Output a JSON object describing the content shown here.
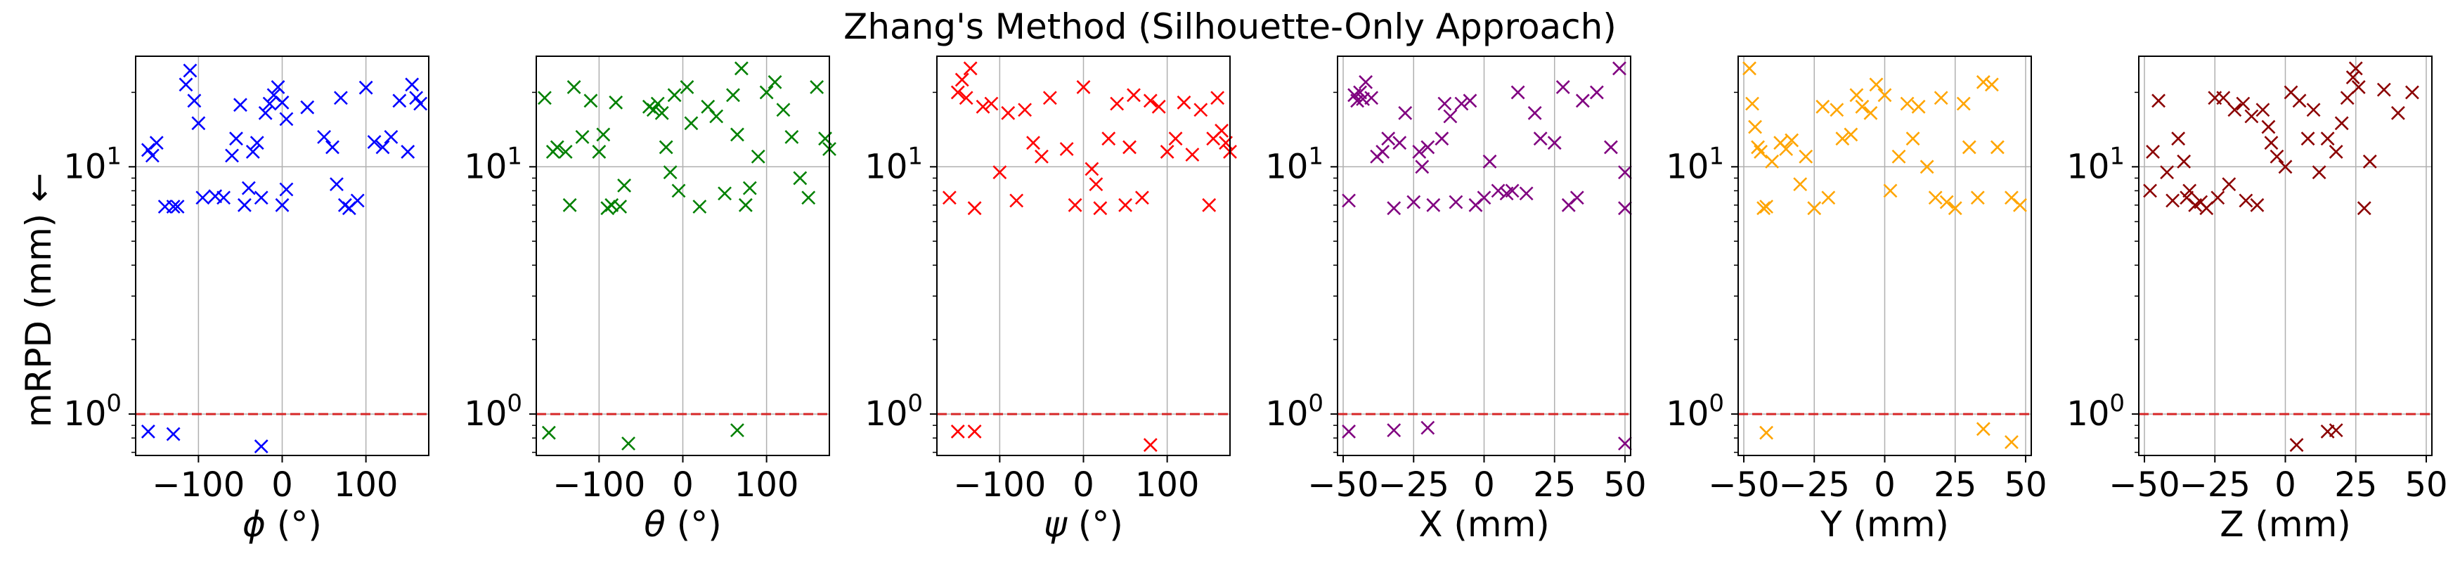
{
  "figure_title": "Zhang's Method (Silhouette-Only Approach)",
  "y_axis_label": "mRPD (mm) ←",
  "colors": {
    "reference_line": "#d62728",
    "grid": "#b0b0b0"
  },
  "chart_data": [
    {
      "type": "scatter",
      "name": "phi",
      "xlabel_symbol": "ϕ",
      "xlabel_unit": " (°)",
      "xlim": [
        -175,
        175
      ],
      "xticks": [
        -100,
        0,
        100
      ],
      "xtick_labels": [
        "−100",
        "0",
        "100"
      ],
      "ylabel": "mRPD (mm) ←",
      "yscale": "log",
      "ylim": [
        0.68,
        28
      ],
      "yticks": [
        1,
        10
      ],
      "ytick_labels": [
        {
          "base": "10",
          "exp": "0"
        },
        {
          "base": "10",
          "exp": "1"
        }
      ],
      "reference_line": 1,
      "grid": true,
      "color": "#0000ff",
      "marker": "x",
      "x": [
        -160,
        -155,
        -150,
        -140,
        -130,
        -125,
        -115,
        -110,
        -105,
        -100,
        -95,
        -80,
        -70,
        -60,
        -55,
        -50,
        -45,
        -40,
        -35,
        -30,
        -25,
        -20,
        -15,
        -10,
        -5,
        0,
        0,
        5,
        5,
        30,
        50,
        60,
        65,
        70,
        75,
        80,
        90,
        100,
        110,
        120,
        130,
        140,
        150,
        155,
        160,
        165,
        -160,
        -130,
        -25
      ],
      "y": [
        11.7,
        11.1,
        12.5,
        6.9,
        6.9,
        6.9,
        21.5,
        24.5,
        18.5,
        15.0,
        7.5,
        7.6,
        7.5,
        11.1,
        13.0,
        17.8,
        7.0,
        8.2,
        11.5,
        12.5,
        7.5,
        16.5,
        18.0,
        19.5,
        21.0,
        7.0,
        18.2,
        15.6,
        8.1,
        17.4,
        13.2,
        12.0,
        8.5,
        19.0,
        7.0,
        6.8,
        7.3,
        20.9,
        12.6,
        12.0,
        13.2,
        18.5,
        11.5,
        21.5,
        19.0,
        18.0,
        0.85,
        0.83,
        0.74
      ]
    },
    {
      "type": "scatter",
      "name": "theta",
      "xlabel_symbol": "θ",
      "xlabel_unit": " (°)",
      "xlim": [
        -175,
        175
      ],
      "xticks": [
        -100,
        0,
        100
      ],
      "xtick_labels": [
        "−100",
        "0",
        "100"
      ],
      "ylabel": "mRPD (mm) ←",
      "yscale": "log",
      "ylim": [
        0.68,
        28
      ],
      "yticks": [
        1,
        10
      ],
      "ytick_labels": [
        {
          "base": "10",
          "exp": "0"
        },
        {
          "base": "10",
          "exp": "1"
        }
      ],
      "reference_line": 1,
      "grid": true,
      "color": "#008000",
      "marker": "x",
      "x": [
        -165,
        -155,
        -150,
        -140,
        -135,
        -130,
        -120,
        -110,
        -100,
        -95,
        -90,
        -85,
        -80,
        -75,
        -70,
        -40,
        -35,
        -30,
        -25,
        -20,
        -15,
        -10,
        -5,
        5,
        10,
        20,
        30,
        40,
        50,
        60,
        65,
        70,
        75,
        80,
        90,
        100,
        110,
        120,
        130,
        140,
        150,
        160,
        170,
        175,
        -160,
        -65,
        65
      ],
      "y": [
        19.0,
        11.5,
        12.0,
        11.5,
        7.0,
        21.0,
        13.2,
        18.5,
        11.5,
        13.5,
        6.8,
        7.0,
        18.2,
        6.9,
        8.4,
        17.5,
        17.0,
        18.0,
        16.5,
        12.0,
        9.5,
        19.5,
        8.0,
        21.0,
        15.0,
        6.9,
        17.5,
        16.0,
        7.8,
        19.5,
        13.5,
        25.0,
        7.0,
        8.2,
        11.0,
        20.0,
        22.0,
        17.0,
        13.2,
        9.0,
        7.5,
        21.0,
        13.0,
        11.8,
        0.84,
        0.76,
        0.86
      ]
    },
    {
      "type": "scatter",
      "name": "psi",
      "xlabel_symbol": "ψ",
      "xlabel_unit": " (°)",
      "xlim": [
        -175,
        175
      ],
      "xticks": [
        -100,
        0,
        100
      ],
      "xtick_labels": [
        "−100",
        "0",
        "100"
      ],
      "ylabel": "mRPD (mm) ←",
      "yscale": "log",
      "ylim": [
        0.68,
        28
      ],
      "yticks": [
        1,
        10
      ],
      "ytick_labels": [
        {
          "base": "10",
          "exp": "0"
        },
        {
          "base": "10",
          "exp": "1"
        }
      ],
      "reference_line": 1,
      "grid": true,
      "color": "#ff0000",
      "marker": "x",
      "x": [
        -160,
        -150,
        -145,
        -140,
        -135,
        -130,
        -120,
        -110,
        -100,
        -90,
        -80,
        -70,
        -60,
        -50,
        -40,
        -20,
        -10,
        0,
        10,
        15,
        20,
        30,
        40,
        50,
        55,
        60,
        70,
        80,
        90,
        100,
        110,
        120,
        130,
        140,
        150,
        155,
        160,
        165,
        170,
        175,
        -150,
        -130,
        80
      ],
      "y": [
        7.5,
        20.0,
        22.5,
        19.0,
        25.0,
        6.8,
        17.5,
        18.0,
        9.5,
        16.5,
        7.3,
        17.0,
        12.5,
        11.0,
        19.0,
        11.8,
        7.0,
        21.0,
        9.8,
        8.5,
        6.8,
        13.0,
        18.0,
        7.0,
        12.0,
        19.5,
        7.5,
        18.5,
        17.5,
        11.5,
        13.0,
        18.2,
        11.2,
        17.0,
        7.0,
        13.0,
        19.0,
        14.0,
        12.5,
        11.5,
        0.85,
        0.85,
        0.75
      ]
    },
    {
      "type": "scatter",
      "name": "X",
      "xlabel_symbol": "X",
      "xlabel_unit": " (mm)",
      "xlim": [
        -52,
        52
      ],
      "xticks": [
        -50,
        -25,
        0,
        25,
        50
      ],
      "xtick_labels": [
        "−50",
        "−25",
        "0",
        "25",
        "50"
      ],
      "ylabel": "mRPD (mm) ←",
      "yscale": "log",
      "ylim": [
        0.68,
        28
      ],
      "yticks": [
        1,
        10
      ],
      "ytick_labels": [
        {
          "base": "10",
          "exp": "0"
        },
        {
          "base": "10",
          "exp": "1"
        }
      ],
      "reference_line": 1,
      "grid": true,
      "color": "#800080",
      "marker": "x",
      "x": [
        -48,
        -46,
        -45,
        -44,
        -43,
        -42,
        -40,
        -38,
        -36,
        -34,
        -32,
        -30,
        -28,
        -25,
        -23,
        -22,
        -20,
        -18,
        -15,
        -14,
        -12,
        -10,
        -8,
        -5,
        -3,
        0,
        2,
        5,
        8,
        10,
        12,
        15,
        18,
        20,
        25,
        28,
        30,
        33,
        35,
        40,
        45,
        48,
        50,
        50,
        -48,
        -32,
        -20,
        50
      ],
      "y": [
        7.3,
        19.5,
        18.5,
        20.0,
        18.8,
        22.0,
        19.0,
        11.0,
        11.5,
        13.0,
        6.8,
        12.5,
        16.5,
        7.2,
        11.5,
        10.0,
        12.0,
        7.0,
        13.0,
        18.0,
        16.0,
        7.2,
        18.0,
        18.5,
        7.0,
        7.5,
        10.5,
        8.0,
        7.8,
        8.0,
        20.0,
        7.8,
        16.5,
        13.0,
        12.5,
        21.0,
        7.0,
        7.5,
        18.5,
        20.0,
        12.0,
        25.0,
        9.5,
        6.8,
        0.85,
        0.86,
        0.88,
        0.76
      ]
    },
    {
      "type": "scatter",
      "name": "Y",
      "xlabel_symbol": "Y",
      "xlabel_unit": " (mm)",
      "xlim": [
        -52,
        52
      ],
      "xticks": [
        -50,
        -25,
        0,
        25,
        50
      ],
      "xtick_labels": [
        "−50",
        "−25",
        "0",
        "25",
        "50"
      ],
      "ylabel": "mRPD (mm) ←",
      "yscale": "log",
      "ylim": [
        0.68,
        28
      ],
      "yticks": [
        1,
        10
      ],
      "ytick_labels": [
        {
          "base": "10",
          "exp": "0"
        },
        {
          "base": "10",
          "exp": "1"
        }
      ],
      "reference_line": 1,
      "grid": true,
      "color": "#ffa500",
      "marker": "x",
      "x": [
        -48,
        -47,
        -46,
        -45,
        -44,
        -43,
        -42,
        -40,
        -37,
        -35,
        -33,
        -30,
        -28,
        -25,
        -22,
        -20,
        -17,
        -15,
        -12,
        -10,
        -8,
        -5,
        -3,
        0,
        2,
        5,
        8,
        10,
        12,
        15,
        18,
        20,
        22,
        25,
        28,
        30,
        33,
        35,
        38,
        40,
        45,
        48,
        -42,
        35,
        45
      ],
      "y": [
        25.0,
        18.0,
        14.5,
        12.0,
        11.5,
        6.8,
        6.9,
        10.5,
        12.5,
        11.8,
        12.8,
        8.5,
        11.0,
        6.8,
        17.5,
        7.5,
        17.0,
        13.0,
        13.5,
        19.5,
        17.5,
        16.5,
        21.5,
        19.5,
        8.0,
        11.0,
        18.0,
        13.0,
        17.5,
        10.0,
        7.5,
        19.0,
        7.2,
        6.8,
        18.0,
        12.0,
        7.5,
        22.0,
        21.5,
        12.0,
        7.5,
        7.0,
        0.84,
        0.87,
        0.77
      ]
    },
    {
      "type": "scatter",
      "name": "Z",
      "xlabel_symbol": "Z",
      "xlabel_unit": " (mm)",
      "xlim": [
        -52,
        52
      ],
      "xticks": [
        -50,
        -25,
        0,
        25,
        50
      ],
      "xtick_labels": [
        "−50",
        "−25",
        "0",
        "25",
        "50"
      ],
      "ylabel": "mRPD (mm) ←",
      "yscale": "log",
      "ylim": [
        0.68,
        28
      ],
      "yticks": [
        1,
        10
      ],
      "ytick_labels": [
        {
          "base": "10",
          "exp": "0"
        },
        {
          "base": "10",
          "exp": "1"
        }
      ],
      "reference_line": 1,
      "grid": true,
      "color": "#8b0000",
      "marker": "x",
      "x": [
        -48,
        -47,
        -45,
        -42,
        -40,
        -38,
        -36,
        -35,
        -34,
        -32,
        -30,
        -28,
        -25,
        -24,
        -22,
        -20,
        -18,
        -15,
        -14,
        -12,
        -10,
        -8,
        -6,
        -5,
        -3,
        0,
        2,
        5,
        8,
        10,
        12,
        15,
        18,
        20,
        22,
        24,
        25,
        26,
        28,
        30,
        35,
        40,
        45,
        4,
        15,
        18
      ],
      "y": [
        8.0,
        11.5,
        18.5,
        9.5,
        7.3,
        13.0,
        10.5,
        7.5,
        8.0,
        7.0,
        7.2,
        6.8,
        19.0,
        7.5,
        19.0,
        8.5,
        17.0,
        18.0,
        7.3,
        16.0,
        7.0,
        17.0,
        14.5,
        12.5,
        11.0,
        10.0,
        20.0,
        18.5,
        13.0,
        17.0,
        9.5,
        13.0,
        11.5,
        15.0,
        19.0,
        23.0,
        25.0,
        21.0,
        6.8,
        10.5,
        20.5,
        16.5,
        20.0,
        0.75,
        0.85,
        0.86
      ]
    }
  ]
}
